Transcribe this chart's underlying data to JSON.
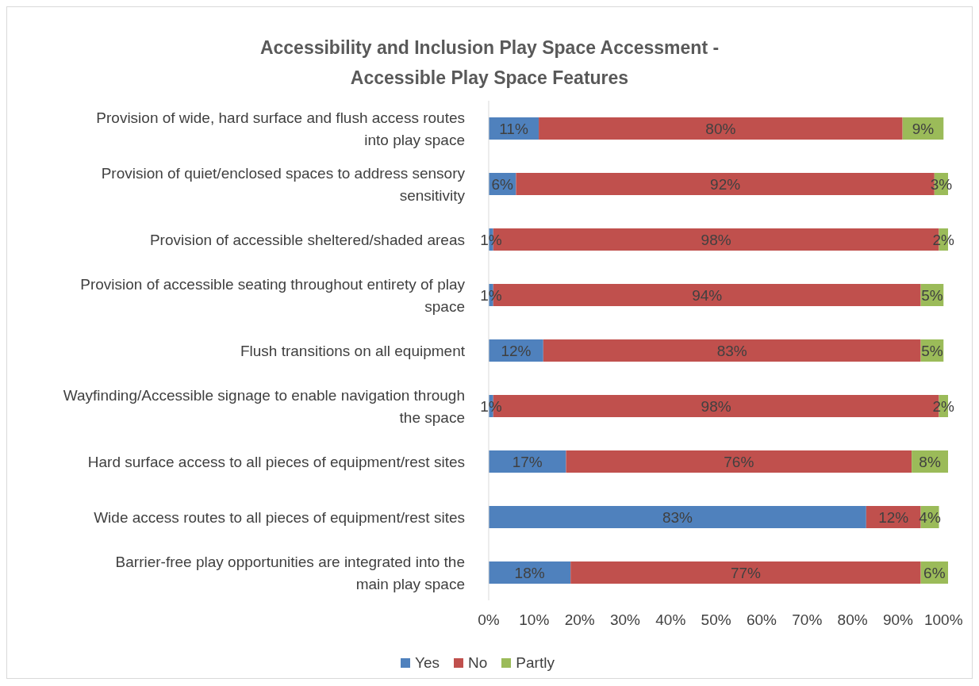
{
  "chart_data": {
    "type": "bar",
    "orientation": "horizontal",
    "stacked": true,
    "title": "Accessibility and Inclusion Play Space Accessment -\nAccessible Play Space Features",
    "categories": [
      "Provision of wide, hard surface and flush access routes into play space",
      "Provision of quiet/enclosed spaces to address sensory sensitivity",
      "Provision of accessible sheltered/shaded areas",
      "Provision of accessible seating throughout entirety of play space",
      "Flush transitions on all equipment",
      "Wayfinding/Accessible signage to enable navigation through the space",
      "Hard surface access to all pieces of equipment/rest sites",
      "Wide access routes to all pieces of equipment/rest sites",
      "Barrier-free play opportunities are integrated into the main play space"
    ],
    "series": [
      {
        "name": "Yes",
        "color": "#4f81bd",
        "values": [
          11,
          6,
          1,
          1,
          12,
          1,
          17,
          83,
          18
        ],
        "value_labels": [
          "11%",
          "6%",
          "1%",
          "1%",
          "12%",
          "1%",
          "17%",
          "83%",
          "18%"
        ]
      },
      {
        "name": "No",
        "color": "#c0504d",
        "values": [
          80,
          92,
          98,
          94,
          83,
          98,
          76,
          12,
          77
        ],
        "value_labels": [
          "80%",
          "92%",
          "98%",
          "94%",
          "83%",
          "98%",
          "76%",
          "12%",
          "77%"
        ]
      },
      {
        "name": "Partly",
        "color": "#9bbb59",
        "values": [
          9,
          3,
          2,
          5,
          5,
          2,
          8,
          4,
          6
        ],
        "value_labels": [
          "9%",
          "3%",
          "2%",
          "5%",
          "5%",
          "2%",
          "8%",
          "4%",
          "6%"
        ]
      }
    ],
    "xlim": [
      0,
      101
    ],
    "xticks": [
      {
        "value": 0,
        "label": "0%"
      },
      {
        "value": 10,
        "label": "10%"
      },
      {
        "value": 20,
        "label": "20%"
      },
      {
        "value": 30,
        "label": "30%"
      },
      {
        "value": 40,
        "label": "40%"
      },
      {
        "value": 50,
        "label": "50%"
      },
      {
        "value": 60,
        "label": "60%"
      },
      {
        "value": 70,
        "label": "70%"
      },
      {
        "value": 80,
        "label": "80%"
      },
      {
        "value": 90,
        "label": "90%"
      },
      {
        "value": 100,
        "label": "100%"
      }
    ],
    "legend": "bottom"
  }
}
